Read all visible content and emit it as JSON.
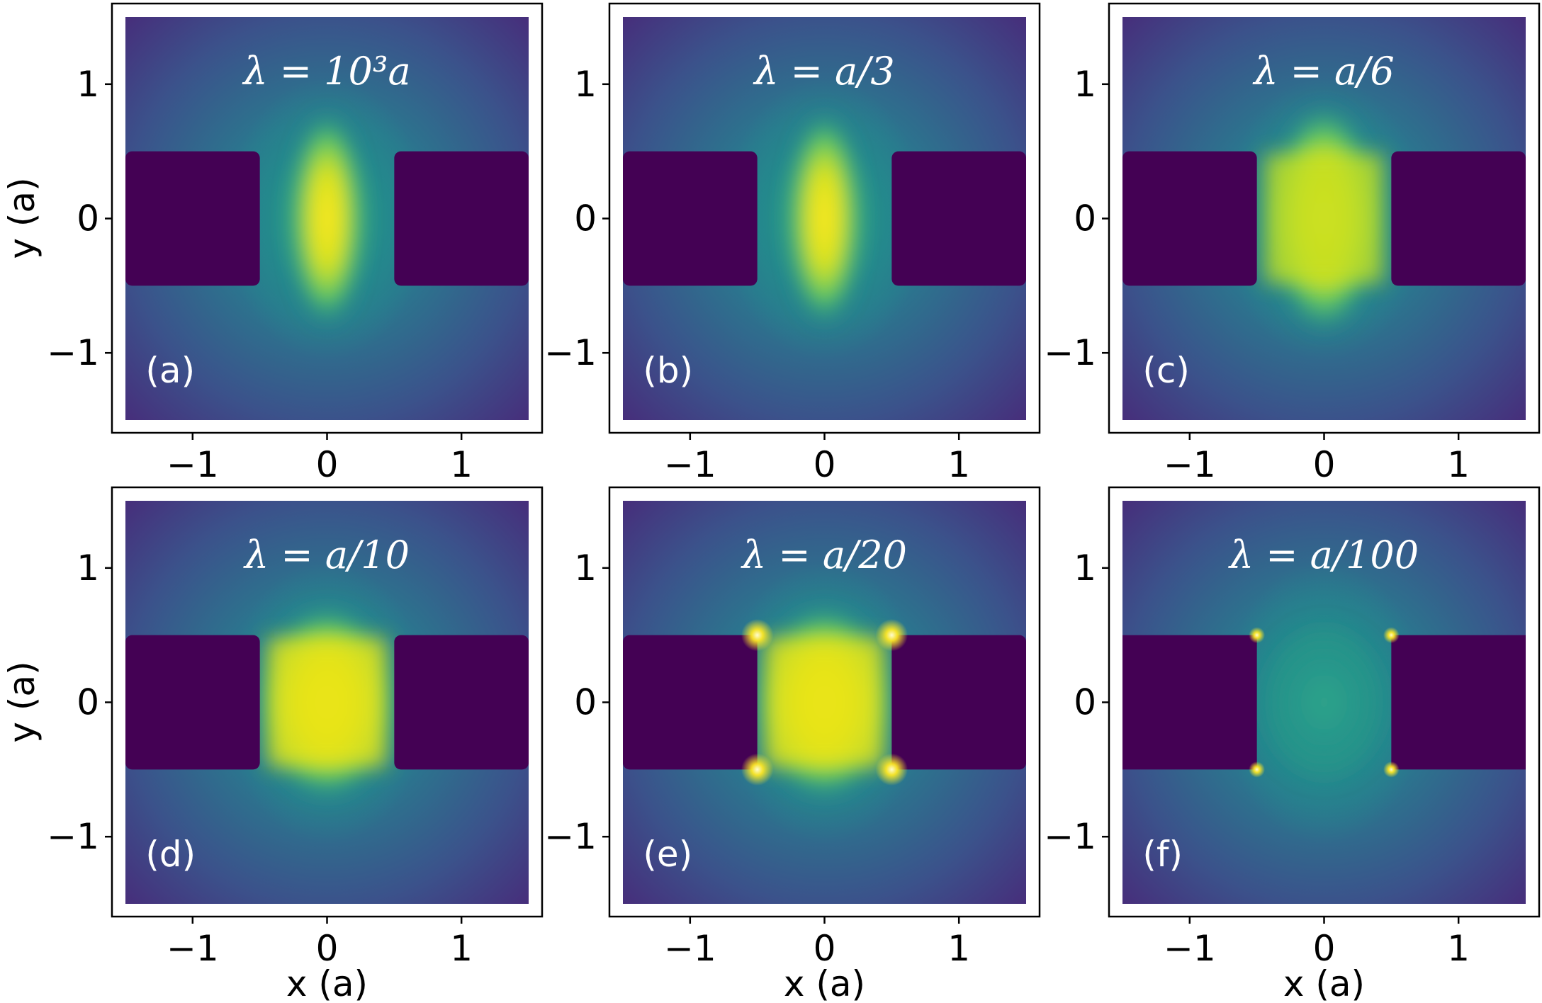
{
  "chart_data": [
    {
      "type": "heatmap",
      "panel": "(a)",
      "title": "λ = 10³a",
      "xlabel": "",
      "ylabel": "y (a)",
      "xticks": [
        "−1",
        "0",
        "1"
      ],
      "yticks": [
        "1",
        "0",
        "−1"
      ],
      "xlim": [
        -1.6,
        1.6
      ],
      "ylim": [
        -1.6,
        1.6
      ],
      "slit_half_width": 0.5,
      "slit_half_height": 0.5,
      "field_shape": "smooth",
      "corner_hotspots": false
    },
    {
      "type": "heatmap",
      "panel": "(b)",
      "title": "λ = a/3",
      "xlabel": "",
      "ylabel": "",
      "xticks": [
        "−1",
        "0",
        "1"
      ],
      "yticks": [
        "1",
        "0",
        "−1"
      ],
      "xlim": [
        -1.6,
        1.6
      ],
      "ylim": [
        -1.6,
        1.6
      ],
      "slit_half_width": 0.5,
      "slit_half_height": 0.5,
      "field_shape": "smooth",
      "corner_hotspots": false
    },
    {
      "type": "heatmap",
      "panel": "(c)",
      "title": "λ = a/6",
      "xlabel": "",
      "ylabel": "",
      "xticks": [
        "−1",
        "0",
        "1"
      ],
      "yticks": [
        "1",
        "0",
        "−1"
      ],
      "xlim": [
        -1.6,
        1.6
      ],
      "ylim": [
        -1.6,
        1.6
      ],
      "slit_half_width": 0.5,
      "slit_half_height": 0.5,
      "field_shape": "broad",
      "corner_hotspots": false
    },
    {
      "type": "heatmap",
      "panel": "(d)",
      "title": "λ = a/10",
      "xlabel": "x (a)",
      "ylabel": "y (a)",
      "xticks": [
        "−1",
        "0",
        "1"
      ],
      "yticks": [
        "1",
        "0",
        "−1"
      ],
      "xlim": [
        -1.6,
        1.6
      ],
      "ylim": [
        -1.6,
        1.6
      ],
      "slit_half_width": 0.5,
      "slit_half_height": 0.5,
      "field_shape": "filled",
      "corner_hotspots": false
    },
    {
      "type": "heatmap",
      "panel": "(e)",
      "title": "λ = a/20",
      "xlabel": "x (a)",
      "ylabel": "",
      "xticks": [
        "−1",
        "0",
        "1"
      ],
      "yticks": [
        "1",
        "0",
        "−1"
      ],
      "xlim": [
        -1.6,
        1.6
      ],
      "ylim": [
        -1.6,
        1.6
      ],
      "slit_half_width": 0.5,
      "slit_half_height": 0.5,
      "field_shape": "filled",
      "corner_hotspots": true
    },
    {
      "type": "heatmap",
      "panel": "(f)",
      "title": "λ = a/100",
      "xlabel": "x (a)",
      "ylabel": "",
      "xticks": [
        "−1",
        "0",
        "1"
      ],
      "yticks": [
        "1",
        "0",
        "−1"
      ],
      "xlim": [
        -1.6,
        1.6
      ],
      "ylim": [
        -1.6,
        1.6
      ],
      "slit_half_width": 0.5,
      "slit_half_height": 0.5,
      "field_shape": "flat",
      "corner_hotspots": true
    }
  ],
  "colors": {
    "colormap": "viridis",
    "low": "#440154",
    "mid": "#21918c",
    "high": "#fde725",
    "frame": "#000000"
  }
}
